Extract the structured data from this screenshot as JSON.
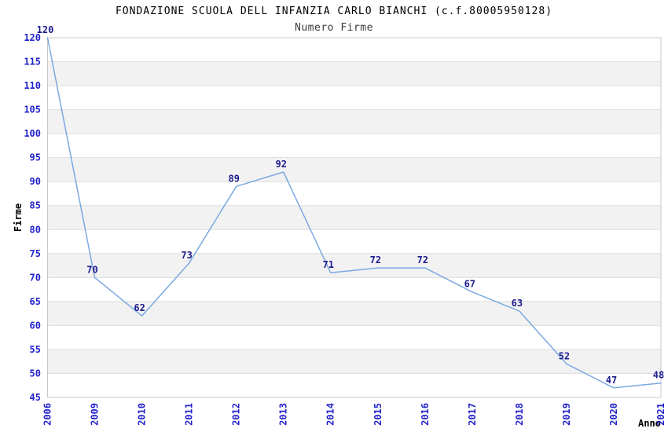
{
  "chart_data": {
    "type": "line",
    "title": "FONDAZIONE SCUOLA DELL INFANZIA CARLO BIANCHI (c.f.80005950128)",
    "subtitle": "Numero Firme",
    "xlabel": "Anno",
    "ylabel": "Firme",
    "categories": [
      "2006",
      "2009",
      "2010",
      "2011",
      "2012",
      "2013",
      "2014",
      "2015",
      "2016",
      "2017",
      "2018",
      "2019",
      "2020",
      "2021"
    ],
    "values": [
      120,
      70,
      62,
      73,
      89,
      92,
      71,
      72,
      72,
      67,
      63,
      52,
      47,
      48
    ],
    "point_labels": [
      "120",
      "70",
      "62",
      "73",
      "89",
      "92",
      "71",
      "72",
      "72",
      "67",
      "63",
      "52",
      "47",
      "48"
    ],
    "ylim": [
      45,
      120
    ],
    "ytick_step": 5,
    "yticks": [
      45,
      50,
      55,
      60,
      65,
      70,
      75,
      80,
      85,
      90,
      95,
      100,
      105,
      110,
      115,
      120
    ],
    "grid": "horizontal gridlines with alternating shaded bands",
    "legend": "none",
    "markers": "none",
    "colors": {
      "line": "#7aa9e0",
      "tick_label": "#2222cc",
      "point_label": "#1c1c8f",
      "band": "#f2f2f2",
      "gridline": "#dedede",
      "plot_border": "#c8c8c8",
      "title": "#000000",
      "subtitle": "#3a3a3a",
      "axis_label": "#000000",
      "background": "#ffffff"
    }
  }
}
